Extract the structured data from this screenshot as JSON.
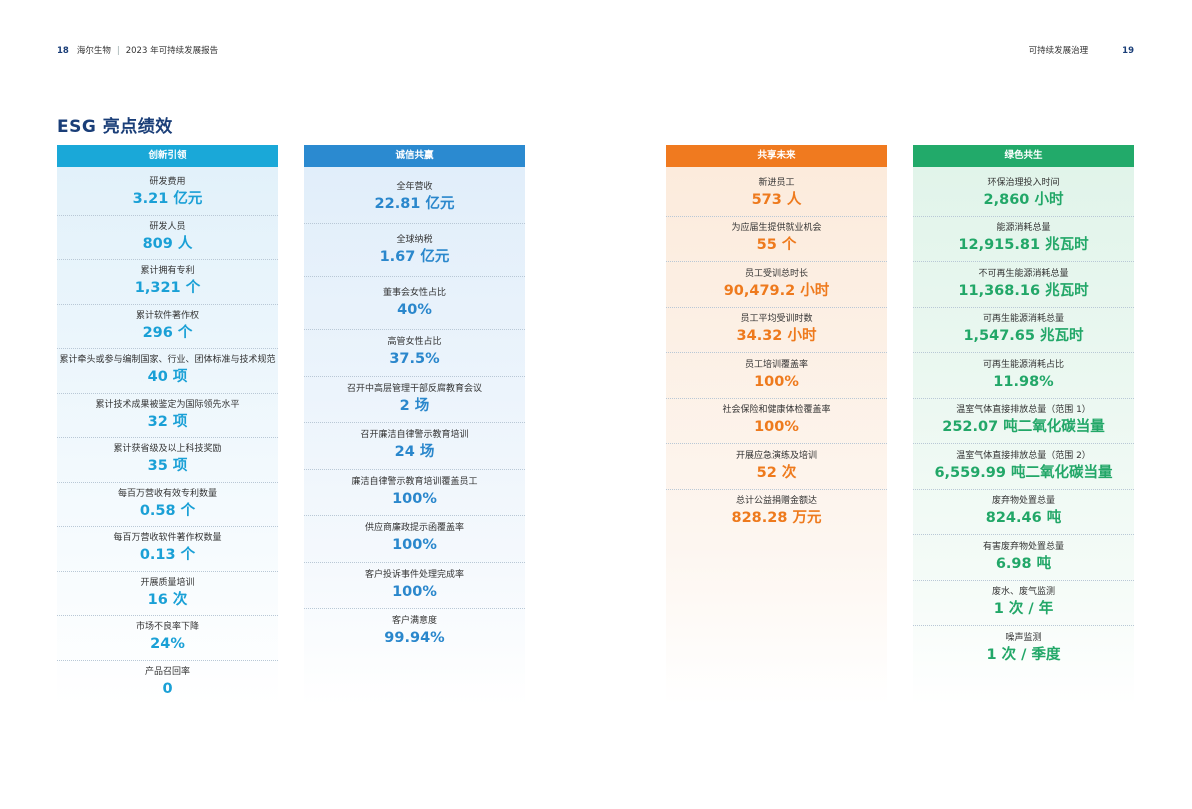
{
  "header": {
    "left_page": "18",
    "left_company": "海尔生物",
    "left_report": "2023 年可持续发展报告",
    "right_section": "可持续发展治理",
    "right_page": "19"
  },
  "title": "ESG 亮点绩效",
  "columns": [
    {
      "header": "创新引领",
      "items": [
        {
          "label": "研发费用",
          "value": "3.21 亿元"
        },
        {
          "label": "研发人员",
          "value": "809 人"
        },
        {
          "label": "累计拥有专利",
          "value": "1,321 个"
        },
        {
          "label": "累计软件著作权",
          "value": "296 个"
        },
        {
          "label": "累计牵头或参与编制国家、行业、团体标准与技术规范",
          "value": "40 项"
        },
        {
          "label": "累计技术成果被鉴定为国际领先水平",
          "value": "32 项"
        },
        {
          "label": "累计获省级及以上科技奖励",
          "value": "35 项"
        },
        {
          "label": "每百万营收有效专利数量",
          "value": "0.58 个"
        },
        {
          "label": "每百万营收软件著作权数量",
          "value": "0.13 个"
        },
        {
          "label": "开展质量培训",
          "value": "16 次"
        },
        {
          "label": "市场不良率下降",
          "value": "24%"
        },
        {
          "label": "产品召回率",
          "value": "0"
        }
      ]
    },
    {
      "header": "诚信共赢",
      "items": [
        {
          "label": "全年营收",
          "value": "22.81 亿元"
        },
        {
          "label": "全球纳税",
          "value": "1.67 亿元"
        },
        {
          "label": "董事会女性占比",
          "value": "40%"
        },
        {
          "label": "高管女性占比",
          "value": "37.5%"
        },
        {
          "label": "召开中高层管理干部反腐教育会议",
          "value": "2 场"
        },
        {
          "label": "召开廉洁自律警示教育培训",
          "value": "24 场"
        },
        {
          "label": "廉洁自律警示教育培训覆盖员工",
          "value": "100%"
        },
        {
          "label": "供应商廉政提示函覆盖率",
          "value": "100%"
        },
        {
          "label": "客户投诉事件处理完成率",
          "value": "100%"
        },
        {
          "label": "客户满意度",
          "value": "99.94%"
        }
      ]
    },
    {
      "header": "共享未来",
      "items": [
        {
          "label": "新进员工",
          "value": "573 人"
        },
        {
          "label": "为应届生提供就业机会",
          "value": "55 个"
        },
        {
          "label": "员工受训总时长",
          "value": "90,479.2 小时"
        },
        {
          "label": "员工平均受训时数",
          "value": "34.32 小时"
        },
        {
          "label": "员工培训覆盖率",
          "value": "100%"
        },
        {
          "label": "社会保险和健康体检覆盖率",
          "value": "100%"
        },
        {
          "label": "开展应急演练及培训",
          "value": "52 次"
        },
        {
          "label": "总计公益捐赠金额达",
          "value": "828.28 万元"
        }
      ]
    },
    {
      "header": "绿色共生",
      "items": [
        {
          "label": "环保治理投入时间",
          "value": "2,860 小时"
        },
        {
          "label": "能源消耗总量",
          "value": "12,915.81 兆瓦时"
        },
        {
          "label": "不可再生能源消耗总量",
          "value": "11,368.16 兆瓦时"
        },
        {
          "label": "可再生能源消耗总量",
          "value": "1,547.65 兆瓦时"
        },
        {
          "label": "可再生能源消耗占比",
          "value": "11.98%"
        },
        {
          "label": "温室气体直接排放总量（范围 1）",
          "value": "252.07 吨二氧化碳当量"
        },
        {
          "label": "温室气体直接排放总量（范围 2）",
          "value": "6,559.99 吨二氧化碳当量"
        },
        {
          "label": "废弃物处置总量",
          "value": "824.46 吨"
        },
        {
          "label": "有害废弃物处置总量",
          "value": "6.98 吨"
        },
        {
          "label": "废水、废气监测",
          "value": "1 次 / 年"
        },
        {
          "label": "噪声监测",
          "value": "1 次 / 季度"
        }
      ]
    }
  ]
}
